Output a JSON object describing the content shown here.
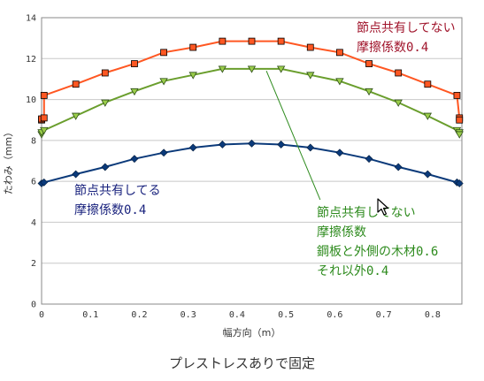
{
  "caption": "プレストレスありで固定",
  "chart_data": {
    "type": "line",
    "title": "",
    "xlabel": "幅方向（m）",
    "ylabel": "たわみ（mm）",
    "xlim": [
      0,
      0.86
    ],
    "ylim": [
      0,
      14
    ],
    "xticks": [
      "0",
      "0.1",
      "0.2",
      "0.3",
      "0.4",
      "0.5",
      "0.6",
      "0.7",
      "0.8"
    ],
    "yticks": [
      "0",
      "2",
      "4",
      "6",
      "8",
      "10",
      "12",
      "14"
    ],
    "grid": true,
    "series": [
      {
        "color": "#ff5722",
        "marker": "square",
        "x": [
          0,
          0,
          0.005,
          0.005,
          0.07,
          0.13,
          0.19,
          0.25,
          0.31,
          0.37,
          0.43,
          0.49,
          0.55,
          0.61,
          0.67,
          0.73,
          0.79,
          0.85,
          0.855,
          0.855
        ],
        "y": [
          9.0,
          9.05,
          9.1,
          10.2,
          10.75,
          11.3,
          11.75,
          12.3,
          12.55,
          12.85,
          12.85,
          12.85,
          12.55,
          12.3,
          11.75,
          11.3,
          10.75,
          10.2,
          9.1,
          9.0
        ]
      },
      {
        "color": "#6a9e2d",
        "marker": "triangle-down",
        "x": [
          0,
          0,
          0.005,
          0.07,
          0.13,
          0.19,
          0.25,
          0.31,
          0.37,
          0.43,
          0.49,
          0.55,
          0.61,
          0.67,
          0.73,
          0.79,
          0.85,
          0.855,
          0.855
        ],
        "y": [
          8.3,
          8.4,
          8.5,
          9.2,
          9.85,
          10.4,
          10.9,
          11.2,
          11.5,
          11.5,
          11.5,
          11.2,
          10.9,
          10.4,
          9.85,
          9.2,
          8.5,
          8.4,
          8.3
        ],
        "annotation": [
          "節点共有してない",
          "摩擦係数",
          "鋼板と外側の木材0.6",
          "それ以外0.4"
        ],
        "annotation_color": "#2e8b1e"
      },
      {
        "color": "#0b3a7a",
        "marker": "diamond",
        "x": [
          0,
          0.005,
          0.07,
          0.13,
          0.19,
          0.25,
          0.31,
          0.37,
          0.43,
          0.49,
          0.55,
          0.61,
          0.67,
          0.73,
          0.79,
          0.85,
          0.855
        ],
        "y": [
          5.9,
          5.95,
          6.35,
          6.7,
          7.1,
          7.4,
          7.65,
          7.8,
          7.85,
          7.8,
          7.65,
          7.4,
          7.1,
          6.7,
          6.35,
          5.95,
          5.9
        ],
        "annotation": [
          "節点共有してる",
          "摩擦係数0.4"
        ],
        "annotation_color": "#1a237e"
      }
    ],
    "top_annotation": [
      "節点共有してない",
      "摩擦係数0.4"
    ],
    "top_annotation_color": "#a0142b",
    "pointer_line": {
      "x0": 0.46,
      "y0": 11.4,
      "x1": 0.57,
      "y1": 5.1,
      "color": "#2e8b1e"
    }
  }
}
